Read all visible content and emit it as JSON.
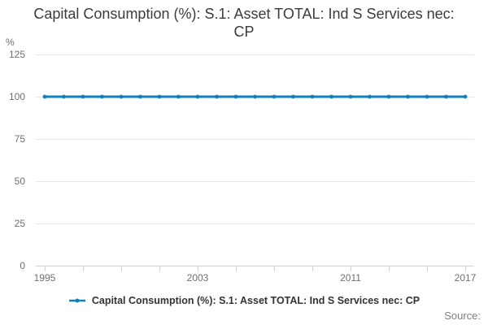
{
  "title": "Capital Consumption (%): S.1: Asset TOTAL: Ind S Services nec: CP",
  "y_axis_unit": "%",
  "legend": {
    "label": "Capital Consumption (%): S.1: Asset TOTAL: Ind S Services nec: CP"
  },
  "source_label": "Source:",
  "colors": {
    "series": "#0f80c0",
    "grid": "#e6e6e6",
    "axis": "#c9d4de",
    "tick_text": "#6f6f6f",
    "title_text": "#3b3b3b",
    "source_text": "#7f7f7f"
  },
  "chart_data": {
    "type": "line",
    "title": "Capital Consumption (%): S.1: Asset TOTAL: Ind S Services nec: CP",
    "xlabel": "",
    "ylabel": "%",
    "x": [
      1995,
      1996,
      1997,
      1998,
      1999,
      2000,
      2001,
      2002,
      2003,
      2004,
      2005,
      2006,
      2007,
      2008,
      2009,
      2010,
      2011,
      2012,
      2013,
      2014,
      2015,
      2016,
      2017
    ],
    "series": [
      {
        "name": "Capital Consumption (%): S.1: Asset TOTAL: Ind S Services nec: CP",
        "values": [
          100,
          100,
          100,
          100,
          100,
          100,
          100,
          100,
          100,
          100,
          100,
          100,
          100,
          100,
          100,
          100,
          100,
          100,
          100,
          100,
          100,
          100,
          100
        ]
      }
    ],
    "ylim": [
      0,
      125
    ],
    "yticks": [
      0,
      25,
      50,
      75,
      100,
      125
    ],
    "xticks_labeled": [
      1995,
      2003,
      2011,
      2017
    ],
    "xtick_step": 2,
    "grid": "horizontal",
    "legend_position": "bottom"
  }
}
